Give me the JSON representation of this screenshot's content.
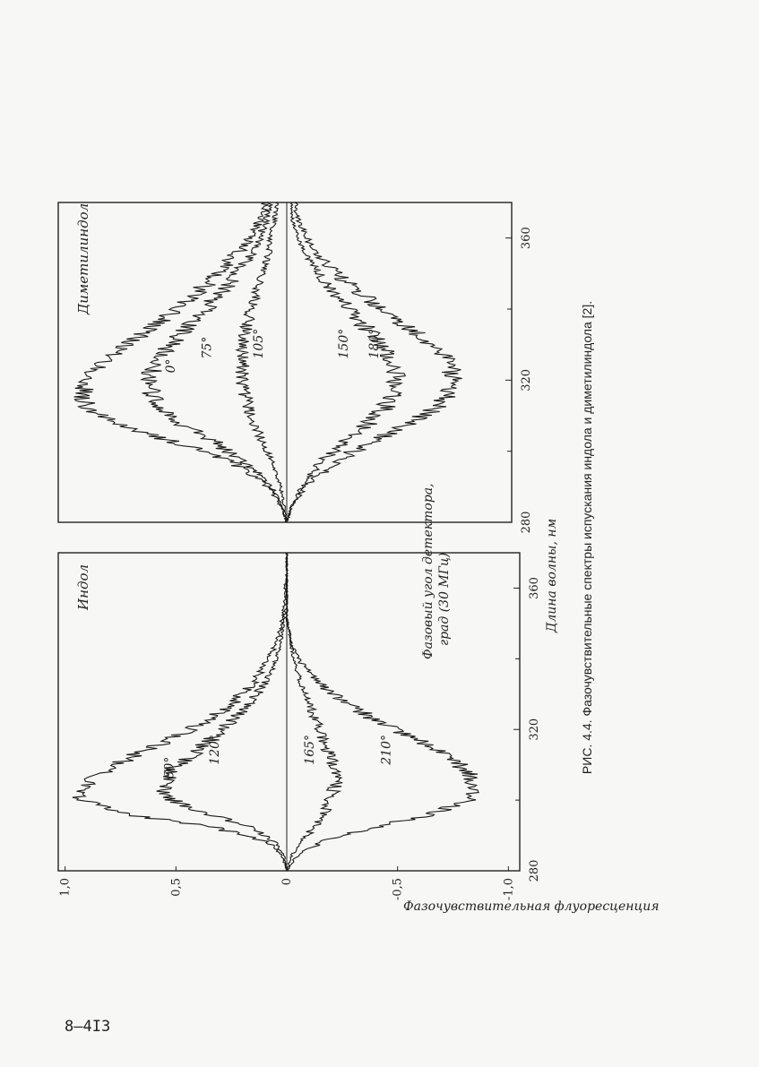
{
  "caption": "РИС. 4.4. Фазочувствительные спектры испускания индола и диметилиндола [2].",
  "page_number": "8–4I3",
  "chart_data": [
    {
      "type": "line",
      "panel": "Индол",
      "xlabel": "Длина волны, нм",
      "ylabel": "Фазочувствительная флуоресценция",
      "legend_title": "Фазовый угол детектора, град (30 МГц)",
      "xlim": [
        280,
        370
      ],
      "ylim": [
        -1.0,
        1.0
      ],
      "x_ticks": [
        "280",
        "320",
        "360"
      ],
      "x_minor": [
        300,
        340
      ],
      "y_ticks": [
        "1,0",
        "0,5",
        "0",
        "-0,5",
        "-1,0"
      ],
      "y_tick_values": [
        1.0,
        0.5,
        0,
        -0.5,
        -1.0
      ],
      "x": [
        280,
        284,
        288,
        292,
        296,
        300,
        304,
        308,
        312,
        316,
        320,
        324,
        328,
        332,
        336,
        340,
        344,
        348,
        352,
        356,
        360,
        364,
        368
      ],
      "series": [
        {
          "name": "60°",
          "values": [
            0.0,
            0.02,
            0.08,
            0.3,
            0.72,
            0.93,
            0.91,
            0.83,
            0.71,
            0.57,
            0.44,
            0.33,
            0.24,
            0.17,
            0.12,
            0.08,
            0.05,
            0.03,
            0.02,
            0.01,
            0.01,
            0.0,
            0.0
          ]
        },
        {
          "name": "120°",
          "values": [
            0.0,
            0.01,
            0.05,
            0.15,
            0.35,
            0.52,
            0.56,
            0.53,
            0.45,
            0.37,
            0.29,
            0.22,
            0.16,
            0.11,
            0.07,
            0.05,
            0.03,
            0.02,
            0.01,
            0.0,
            0.0,
            0.0,
            0.0
          ]
        },
        {
          "name": "165°",
          "values": [
            0.0,
            -0.02,
            -0.06,
            -0.12,
            -0.16,
            -0.2,
            -0.22,
            -0.22,
            -0.2,
            -0.17,
            -0.15,
            -0.12,
            -0.1,
            -0.07,
            -0.05,
            -0.03,
            -0.02,
            -0.01,
            0.0,
            0.0,
            0.0,
            0.0,
            0.0
          ]
        },
        {
          "name": "210°",
          "values": [
            0.0,
            -0.04,
            -0.15,
            -0.38,
            -0.66,
            -0.82,
            -0.85,
            -0.82,
            -0.73,
            -0.62,
            -0.48,
            -0.36,
            -0.26,
            -0.17,
            -0.1,
            -0.05,
            -0.02,
            -0.01,
            0.0,
            0.0,
            0.0,
            0.0,
            0.0
          ]
        }
      ]
    },
    {
      "type": "line",
      "panel": "Диметилиндол",
      "xlabel": "Длина волны, нм",
      "ylabel": "Фазочувствительная флуоресценция",
      "xlim": [
        280,
        370
      ],
      "ylim": [
        -1.0,
        1.0
      ],
      "x_ticks": [
        "280",
        "320",
        "360"
      ],
      "x_minor": [
        300,
        340
      ],
      "x": [
        280,
        284,
        288,
        292,
        296,
        300,
        304,
        308,
        312,
        316,
        320,
        324,
        328,
        332,
        336,
        340,
        344,
        348,
        352,
        356,
        360,
        364,
        368
      ],
      "series": [
        {
          "name": "0°",
          "values": [
            0.0,
            0.02,
            0.06,
            0.12,
            0.22,
            0.38,
            0.58,
            0.78,
            0.9,
            0.92,
            0.9,
            0.84,
            0.76,
            0.67,
            0.58,
            0.5,
            0.42,
            0.34,
            0.28,
            0.22,
            0.17,
            0.13,
            0.1
          ]
        },
        {
          "name": "75°",
          "values": [
            0.0,
            0.02,
            0.05,
            0.1,
            0.17,
            0.26,
            0.37,
            0.48,
            0.56,
            0.61,
            0.62,
            0.6,
            0.55,
            0.49,
            0.43,
            0.37,
            0.31,
            0.25,
            0.2,
            0.16,
            0.12,
            0.1,
            0.08
          ]
        },
        {
          "name": "105°",
          "values": [
            0.0,
            0.01,
            0.02,
            0.04,
            0.06,
            0.09,
            0.12,
            0.15,
            0.17,
            0.19,
            0.2,
            0.2,
            0.2,
            0.19,
            0.18,
            0.16,
            0.14,
            0.12,
            0.1,
            0.08,
            0.07,
            0.06,
            0.05
          ]
        },
        {
          "name": "150°",
          "values": [
            0.0,
            -0.02,
            -0.05,
            -0.09,
            -0.14,
            -0.21,
            -0.29,
            -0.37,
            -0.44,
            -0.48,
            -0.5,
            -0.49,
            -0.45,
            -0.4,
            -0.34,
            -0.28,
            -0.22,
            -0.17,
            -0.12,
            -0.08,
            -0.05,
            -0.03,
            -0.02
          ]
        },
        {
          "name": "180°",
          "values": [
            0.0,
            -0.02,
            -0.06,
            -0.12,
            -0.2,
            -0.3,
            -0.43,
            -0.56,
            -0.67,
            -0.73,
            -0.75,
            -0.74,
            -0.69,
            -0.61,
            -0.52,
            -0.43,
            -0.34,
            -0.26,
            -0.19,
            -0.13,
            -0.09,
            -0.06,
            -0.04
          ]
        }
      ]
    }
  ]
}
